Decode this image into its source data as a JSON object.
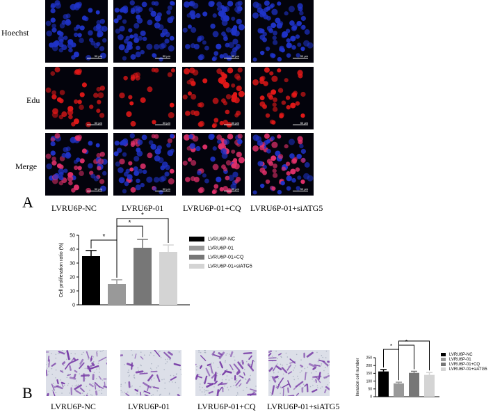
{
  "panel_a": {
    "letter": "A",
    "row_labels": [
      "Hoechst",
      "Edu",
      "Merge"
    ],
    "scale_label": "50 μm",
    "column_labels": [
      "LVRU6P-NC",
      "LVRU6P-01",
      "LVRU6P-01+CQ",
      "LVRU6P-01+siATG5"
    ]
  },
  "panel_b": {
    "letter": "B",
    "column_labels": [
      "LVRU6P-NC",
      "LVRU6P-01",
      "LVRU6P-01+CQ",
      "LVRU6P-01+siATG5"
    ]
  },
  "colors": {
    "hoechst": "#1f33c8",
    "edu": "#e11818",
    "merge_red": "#e0306a",
    "crystal_violet": "#7a3fa8",
    "bar_colors": [
      "#000000",
      "#999999",
      "#777777",
      "#d4d4d4"
    ]
  },
  "chart_data": [
    {
      "type": "bar",
      "title": "",
      "xlabel": "",
      "ylabel": "Cell proliferation ratio (%)",
      "ylim": [
        0,
        50
      ],
      "yticks": [
        "0",
        "10",
        "20",
        "30",
        "40",
        "50"
      ],
      "categories": [
        "LVRU6P-NC",
        "LVRU6P-01",
        "LVRU6P-01+CQ",
        "LVRU6P-01+siATG5"
      ],
      "values": [
        35,
        15,
        41,
        38
      ],
      "errors": [
        4,
        3,
        6,
        5
      ],
      "significance": [
        {
          "from": 0,
          "to": 1,
          "label": "*"
        },
        {
          "from": 1,
          "to": 2,
          "label": "*"
        },
        {
          "from": 1,
          "to": 3,
          "label": "*"
        }
      ],
      "legend": [
        "LVRU6P-NC",
        "LVRU6P-01",
        "LVRU6P-01+CQ",
        "LVRU6P-01+siATG5"
      ],
      "legend_position": "right",
      "grid": false
    },
    {
      "type": "bar",
      "title": "",
      "xlabel": "",
      "ylabel": "Invasion cell number",
      "ylim": [
        0,
        250
      ],
      "yticks": [
        "0",
        "50",
        "100",
        "150",
        "200",
        "250"
      ],
      "categories": [
        "LVRU6P-NC",
        "LVRU6P-01",
        "LVRU6P-01+CQ",
        "LVRU6P-01+siATG5"
      ],
      "values": [
        162,
        85,
        153,
        140
      ],
      "errors": [
        12,
        8,
        10,
        15
      ],
      "significance": [
        {
          "from": 0,
          "to": 1,
          "label": "*"
        },
        {
          "from": 1,
          "to": 2,
          "label": "*"
        },
        {
          "from": 1,
          "to": 3,
          "label": "*"
        }
      ],
      "legend": [
        "LVRU6P-NC",
        "LVRU6P-01",
        "LVRU6P-01+CQ",
        "LVRU6P-01+siATG5"
      ],
      "legend_position": "right",
      "grid": false
    }
  ]
}
